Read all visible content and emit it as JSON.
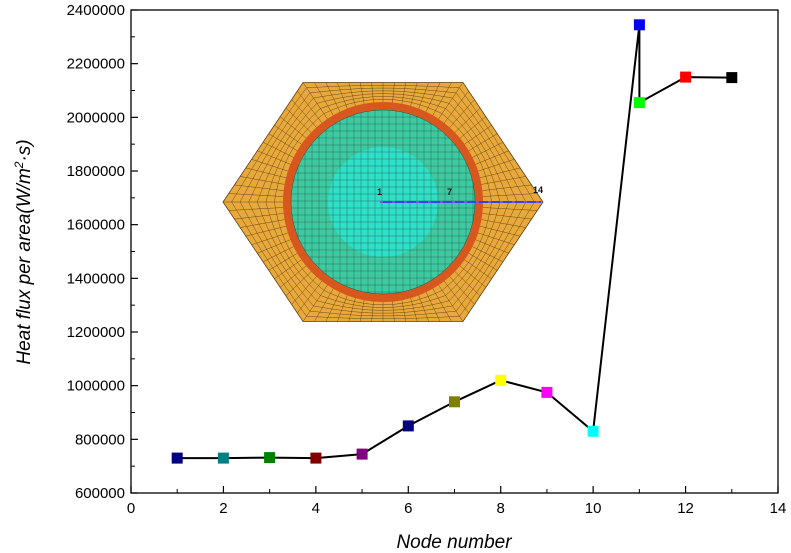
{
  "chart_data": {
    "type": "line",
    "xlabel": "Node number",
    "ylabel_parts": [
      "Heat flux per area",
      "(W/m",
      "2",
      "·s)"
    ],
    "xlim": [
      0,
      14
    ],
    "ylim": [
      600000,
      2400000
    ],
    "xticks": [
      0,
      2,
      4,
      6,
      8,
      10,
      12,
      14
    ],
    "yticks": [
      600000,
      800000,
      1000000,
      1200000,
      1400000,
      1600000,
      1800000,
      2000000,
      2200000,
      2400000
    ],
    "grid": false,
    "series": [
      {
        "x": [
          1,
          2,
          3,
          4,
          5,
          6,
          7,
          8,
          9,
          10,
          11,
          11,
          12,
          13
        ],
        "y": [
          730000,
          730000,
          732000,
          730000,
          745000,
          850000,
          940000,
          1020000,
          975000,
          830000,
          2345000,
          2055000,
          2150000,
          2148000
        ],
        "marker_colors": [
          "#000080",
          "#008080",
          "#008000",
          "#800000",
          "#800080",
          "#000080",
          "#808000",
          "#ffff00",
          "#ff00ff",
          "#00ffff",
          "#0000ff",
          "#00ff00",
          "#ff0000",
          "#000000"
        ],
        "line_color": "#000000"
      }
    ],
    "inset": {
      "labels": [
        "1",
        "7",
        "14"
      ],
      "colors": {
        "outer": "#e8a93a",
        "ring": "#d8571e",
        "inner": "#3ec9a0",
        "core": "#2ee0c8",
        "mesh": "#5a3f1a",
        "probe": "#3344ee"
      }
    }
  }
}
